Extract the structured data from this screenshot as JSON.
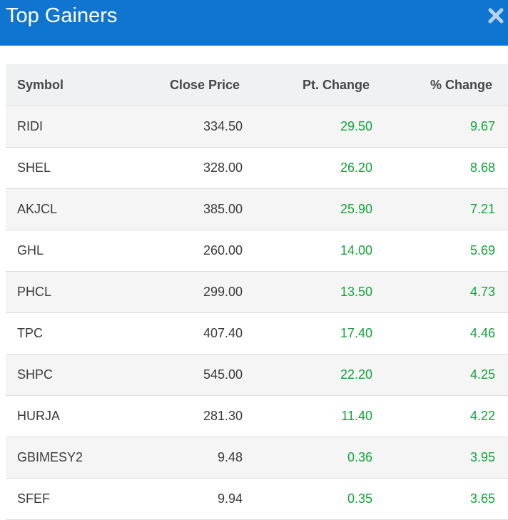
{
  "header": {
    "title": "Top Gainers",
    "close_icon": "close-icon",
    "background": "#0f75d1"
  },
  "table": {
    "columns": [
      "Symbol",
      "Close Price",
      "Pt. Change",
      "% Change"
    ],
    "rows": [
      {
        "symbol": "RIDI",
        "close": "334.50",
        "pt": "29.50",
        "pct": "9.67"
      },
      {
        "symbol": "SHEL",
        "close": "328.00",
        "pt": "26.20",
        "pct": "8.68"
      },
      {
        "symbol": "AKJCL",
        "close": "385.00",
        "pt": "25.90",
        "pct": "7.21"
      },
      {
        "symbol": "GHL",
        "close": "260.00",
        "pt": "14.00",
        "pct": "5.69"
      },
      {
        "symbol": "PHCL",
        "close": "299.00",
        "pt": "13.50",
        "pct": "4.73"
      },
      {
        "symbol": "TPC",
        "close": "407.40",
        "pt": "17.40",
        "pct": "4.46"
      },
      {
        "symbol": "SHPC",
        "close": "545.00",
        "pt": "22.20",
        "pct": "4.25"
      },
      {
        "symbol": "HURJA",
        "close": "281.30",
        "pt": "11.40",
        "pct": "4.22"
      },
      {
        "symbol": "GBIMESY2",
        "close": "9.48",
        "pt": "0.36",
        "pct": "3.95"
      },
      {
        "symbol": "SFEF",
        "close": "9.94",
        "pt": "0.35",
        "pct": "3.65"
      }
    ],
    "gain_color": "#14a33a"
  }
}
